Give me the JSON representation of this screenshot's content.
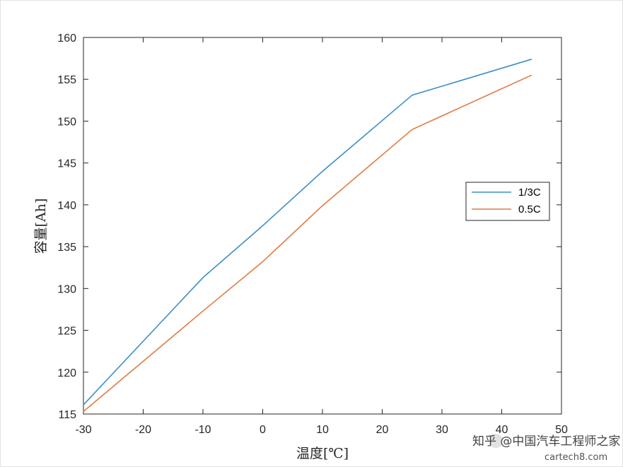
{
  "chart_data": {
    "type": "line",
    "title": "",
    "xlabel": "温度[℃]",
    "ylabel": "容量[Ah]",
    "xlim": [
      -30,
      50
    ],
    "ylim": [
      115,
      160
    ],
    "xticks": [
      -30,
      -20,
      -10,
      0,
      10,
      20,
      30,
      40,
      50
    ],
    "yticks": [
      115,
      120,
      125,
      130,
      135,
      140,
      145,
      150,
      155,
      160
    ],
    "grid": false,
    "legend_position": "right",
    "series": [
      {
        "name": "1/3C",
        "color": "#3d8fc6",
        "x": [
          -30,
          -10,
          0,
          10,
          25,
          45
        ],
        "y": [
          116.1,
          131.3,
          137.5,
          144.0,
          153.1,
          157.4
        ]
      },
      {
        "name": "0.5C",
        "color": "#e07a43",
        "x": [
          -30,
          -10,
          0,
          10,
          25,
          45
        ],
        "y": [
          115.3,
          127.3,
          133.2,
          139.9,
          149.0,
          155.5
        ]
      }
    ]
  },
  "watermark": {
    "text": "知乎 @中国汽车工程师之家",
    "url": "cartech8.com"
  }
}
